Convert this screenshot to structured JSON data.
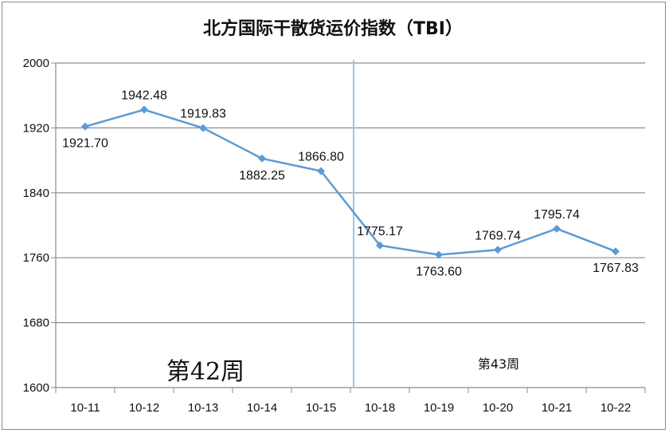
{
  "chart_data": {
    "type": "line",
    "title": "北方国际干散货运价指数（TBI）",
    "categories": [
      "10-11",
      "10-12",
      "10-13",
      "10-14",
      "10-15",
      "10-18",
      "10-19",
      "10-20",
      "10-21",
      "10-22"
    ],
    "values": [
      1921.7,
      1942.48,
      1919.83,
      1882.25,
      1866.8,
      1775.17,
      1763.6,
      1769.74,
      1795.74,
      1767.83
    ],
    "value_labels": [
      "1921.70",
      "1942.48",
      "1919.83",
      "1882.25",
      "1866.80",
      "1775.17",
      "1763.60",
      "1769.74",
      "1795.74",
      "1767.83"
    ],
    "ylim": [
      1600,
      2000
    ],
    "yticks": [
      1600,
      1680,
      1760,
      1840,
      1920,
      2000
    ],
    "grid": true,
    "line_color": "#5b9bd5",
    "divider_color": "#9dc3e6",
    "week_labels": [
      "第42周",
      "第43周"
    ]
  }
}
